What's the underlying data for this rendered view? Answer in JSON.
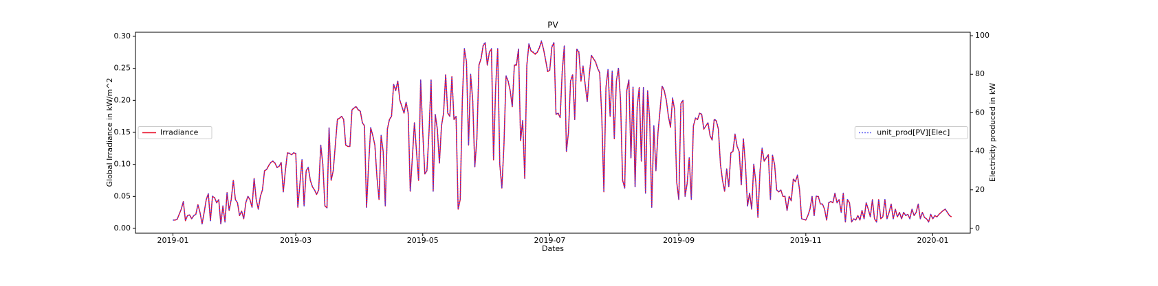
{
  "chart_data": {
    "type": "line",
    "title": "PV",
    "xlabel": "Dates",
    "ylabel": "Global Irradiance in kW/m^2",
    "y2label": "Electricity produced in kW",
    "xlim": [
      -18,
      383
    ],
    "xticks": [
      {
        "value": 0,
        "label": "2019-01"
      },
      {
        "value": 59,
        "label": "2019-03"
      },
      {
        "value": 120,
        "label": "2019-05"
      },
      {
        "value": 181,
        "label": "2019-07"
      },
      {
        "value": 243,
        "label": "2019-09"
      },
      {
        "value": 304,
        "label": "2019-11"
      },
      {
        "value": 365,
        "label": "2020-01"
      }
    ],
    "ylim": [
      -0.0075,
      0.3064
    ],
    "yticks": [
      {
        "value": 0,
        "label": "0.00"
      },
      0.05,
      {
        "value": 0.1,
        "label": "0.10"
      },
      0.15,
      {
        "value": 0.2,
        "label": "0.20"
      },
      0.25,
      {
        "value": 0.3,
        "label": "0.30"
      }
    ],
    "y2lim": [
      -2.5,
      101.8
    ],
    "y2ticks": [
      0,
      20,
      40,
      60,
      80,
      100
    ],
    "x": [
      0,
      1,
      2,
      3,
      4,
      5,
      6,
      7,
      8,
      9,
      10,
      11,
      12,
      13,
      14,
      15,
      16,
      17,
      18,
      19,
      20,
      21,
      22,
      23,
      24,
      25,
      26,
      27,
      28,
      29,
      30,
      31,
      32,
      33,
      34,
      35,
      36,
      37,
      38,
      39,
      40,
      41,
      42,
      43,
      44,
      45,
      46,
      47,
      48,
      49,
      50,
      51,
      52,
      53,
      54,
      55,
      56,
      57,
      58,
      59,
      60,
      61,
      62,
      63,
      64,
      65,
      66,
      67,
      68,
      69,
      70,
      71,
      72,
      73,
      74,
      75,
      76,
      77,
      78,
      79,
      80,
      81,
      82,
      83,
      84,
      85,
      86,
      87,
      88,
      89,
      90,
      91,
      92,
      93,
      94,
      95,
      96,
      97,
      98,
      99,
      100,
      101,
      102,
      103,
      104,
      105,
      106,
      107,
      108,
      109,
      110,
      111,
      112,
      113,
      114,
      115,
      116,
      117,
      118,
      119,
      120,
      121,
      122,
      123,
      124,
      125,
      126,
      127,
      128,
      129,
      130,
      131,
      132,
      133,
      134,
      135,
      136,
      137,
      138,
      139,
      140,
      141,
      142,
      143,
      144,
      145,
      146,
      147,
      148,
      149,
      150,
      151,
      152,
      153,
      154,
      155,
      156,
      157,
      158,
      159,
      160,
      161,
      162,
      163,
      164,
      165,
      166,
      167,
      168,
      169,
      170,
      171,
      172,
      173,
      174,
      175,
      176,
      177,
      178,
      179,
      180,
      181,
      182,
      183,
      184,
      185,
      186,
      187,
      188,
      189,
      190,
      191,
      192,
      193,
      194,
      195,
      196,
      197,
      198,
      199,
      200,
      201,
      202,
      203,
      204,
      205,
      206,
      207,
      208,
      209,
      210,
      211,
      212,
      213,
      214,
      215,
      216,
      217,
      218,
      219,
      220,
      221,
      222,
      223,
      224,
      225,
      226,
      227,
      228,
      229,
      230,
      231,
      232,
      233,
      234,
      235,
      236,
      237,
      238,
      239,
      240,
      241,
      242,
      243,
      244,
      245,
      246,
      247,
      248,
      249,
      250,
      251,
      252,
      253,
      254,
      255,
      256,
      257,
      258,
      259,
      260,
      261,
      262,
      263,
      264,
      265,
      266,
      267,
      268,
      269,
      270,
      271,
      272,
      273,
      274,
      275,
      276,
      277,
      278,
      279,
      280,
      281,
      282,
      283,
      284,
      285,
      286,
      287,
      288,
      289,
      290,
      291,
      292,
      293,
      294,
      295,
      296,
      297,
      298,
      299,
      300,
      301,
      302,
      303,
      304,
      305,
      306,
      307,
      308,
      309,
      310,
      311,
      312,
      313,
      314,
      315,
      316,
      317,
      318,
      319,
      320,
      321,
      322,
      323,
      324,
      325,
      326,
      327,
      328,
      329,
      330,
      331,
      332,
      333,
      334,
      335,
      336,
      337,
      338,
      339,
      340,
      341,
      342,
      343,
      344,
      345,
      346,
      347,
      348,
      349,
      350,
      351,
      352,
      353,
      354,
      355,
      356,
      357,
      358,
      359,
      360,
      361,
      362,
      363,
      364,
      365,
      366,
      367,
      368,
      369,
      370,
      371,
      372,
      373,
      374
    ],
    "series": [
      {
        "name": "Irradiance",
        "color": "#e8102a",
        "style": "solid",
        "legend_loc": "center left",
        "values": [
          0.013,
          0.013,
          0.014,
          0.022,
          0.03,
          0.042,
          0.012,
          0.02,
          0.021,
          0.015,
          0.02,
          0.022,
          0.037,
          0.025,
          0.007,
          0.025,
          0.045,
          0.054,
          0.012,
          0.05,
          0.048,
          0.04,
          0.045,
          0.007,
          0.035,
          0.01,
          0.056,
          0.028,
          0.045,
          0.075,
          0.045,
          0.04,
          0.02,
          0.027,
          0.015,
          0.04,
          0.05,
          0.045,
          0.033,
          0.078,
          0.045,
          0.03,
          0.05,
          0.06,
          0.09,
          0.092,
          0.098,
          0.103,
          0.105,
          0.102,
          0.095,
          0.097,
          0.103,
          0.057,
          0.09,
          0.118,
          0.117,
          0.115,
          0.118,
          0.117,
          0.033,
          0.07,
          0.107,
          0.035,
          0.09,
          0.095,
          0.075,
          0.065,
          0.06,
          0.053,
          0.06,
          0.13,
          0.1,
          0.035,
          0.032,
          0.157,
          0.075,
          0.09,
          0.13,
          0.17,
          0.172,
          0.175,
          0.17,
          0.13,
          0.128,
          0.128,
          0.185,
          0.188,
          0.19,
          0.185,
          0.183,
          0.165,
          0.16,
          0.033,
          0.1,
          0.157,
          0.145,
          0.13,
          0.08,
          0.045,
          0.145,
          0.12,
          0.035,
          0.155,
          0.17,
          0.175,
          0.225,
          0.215,
          0.23,
          0.2,
          0.19,
          0.18,
          0.197,
          0.18,
          0.058,
          0.11,
          0.165,
          0.12,
          0.075,
          0.232,
          0.15,
          0.085,
          0.09,
          0.15,
          0.232,
          0.058,
          0.178,
          0.155,
          0.102,
          0.16,
          0.18,
          0.24,
          0.18,
          0.175,
          0.237,
          0.17,
          0.175,
          0.03,
          0.045,
          0.2,
          0.28,
          0.26,
          0.13,
          0.24,
          0.2,
          0.096,
          0.14,
          0.255,
          0.265,
          0.285,
          0.29,
          0.255,
          0.275,
          0.28,
          0.107,
          0.22,
          0.28,
          0.1,
          0.063,
          0.13,
          0.238,
          0.23,
          0.215,
          0.19,
          0.255,
          0.255,
          0.28,
          0.137,
          0.168,
          0.078,
          0.255,
          0.288,
          0.277,
          0.275,
          0.272,
          0.275,
          0.282,
          0.292,
          0.28,
          0.263,
          0.245,
          0.247,
          0.283,
          0.29,
          0.178,
          0.18,
          0.173,
          0.245,
          0.285,
          0.12,
          0.15,
          0.23,
          0.24,
          0.17,
          0.28,
          0.275,
          0.23,
          0.253,
          0.225,
          0.198,
          0.24,
          0.27,
          0.265,
          0.26,
          0.25,
          0.243,
          0.175,
          0.057,
          0.22,
          0.248,
          0.175,
          0.245,
          0.14,
          0.23,
          0.25,
          0.2,
          0.075,
          0.063,
          0.215,
          0.232,
          0.11,
          0.22,
          0.065,
          0.19,
          0.22,
          0.105,
          0.22,
          0.055,
          0.215,
          0.17,
          0.033,
          0.16,
          0.09,
          0.15,
          0.185,
          0.222,
          0.215,
          0.2,
          0.175,
          0.158,
          0.203,
          0.185,
          0.072,
          0.045,
          0.195,
          0.2,
          0.05,
          0.07,
          0.11,
          0.045,
          0.16,
          0.172,
          0.17,
          0.18,
          0.178,
          0.155,
          0.16,
          0.165,
          0.145,
          0.138,
          0.17,
          0.168,
          0.155,
          0.1,
          0.075,
          0.058,
          0.093,
          0.065,
          0.118,
          0.12,
          0.147,
          0.128,
          0.12,
          0.068,
          0.14,
          0.1,
          0.035,
          0.055,
          0.03,
          0.1,
          0.072,
          0.017,
          0.09,
          0.125,
          0.105,
          0.11,
          0.115,
          0.045,
          0.114,
          0.1,
          0.06,
          0.057,
          0.06,
          0.05,
          0.05,
          0.028,
          0.05,
          0.043,
          0.077,
          0.073,
          0.083,
          0.06,
          0.015,
          0.014,
          0.013,
          0.02,
          0.03,
          0.05,
          0.02,
          0.05,
          0.05,
          0.038,
          0.038,
          0.03,
          0.013,
          0.04,
          0.042,
          0.04,
          0.055,
          0.04,
          0.045,
          0.025,
          0.055,
          0.01,
          0.045,
          0.04,
          0.01,
          0.015,
          0.013,
          0.02,
          0.013,
          0.028,
          0.015,
          0.04,
          0.03,
          0.018,
          0.045,
          0.015,
          0.01,
          0.045,
          0.015,
          0.018,
          0.045,
          0.015,
          0.025,
          0.038,
          0.015,
          0.03,
          0.018,
          0.025,
          0.015,
          0.025,
          0.02,
          0.022,
          0.015,
          0.03,
          0.02,
          0.025,
          0.038,
          0.015,
          0.025,
          0.017,
          0.015,
          0.01,
          0.022,
          0.015,
          0.02,
          0.018,
          0.022,
          0.025,
          0.028,
          0.03,
          0.025,
          0.02,
          0.018
        ]
      },
      {
        "name": "unit_prod[PV][Elec]",
        "color": "#3c3cf0",
        "style": "dotted",
        "axis": "y2",
        "legend_loc": "center right",
        "values": [
          4.3,
          4.3,
          4.7,
          7.3,
          10,
          14,
          4,
          6.7,
          7,
          5,
          6.7,
          7.3,
          12.3,
          8.3,
          2.3,
          8.3,
          15,
          18,
          4,
          16.7,
          16,
          13.3,
          15,
          2.3,
          11.7,
          3.3,
          18.7,
          9.3,
          15,
          25,
          15,
          13.3,
          6.7,
          9,
          5,
          13.3,
          16.7,
          15,
          11,
          26,
          15,
          10,
          16.7,
          20,
          30,
          30.7,
          32.7,
          34.3,
          35,
          34,
          31.7,
          32.3,
          34.3,
          19,
          30,
          39.3,
          39,
          38.3,
          39.3,
          39,
          11,
          23.3,
          35.7,
          11.7,
          30,
          31.7,
          25,
          21.7,
          20,
          17.7,
          20,
          43.3,
          33.3,
          11.7,
          10.7,
          52.3,
          25,
          30,
          43.3,
          56.7,
          57.3,
          58.3,
          56.7,
          43.3,
          42.7,
          42.7,
          61.7,
          62.7,
          63.3,
          61.7,
          61,
          55,
          53.3,
          11,
          33.3,
          52.3,
          48.3,
          43.3,
          26.7,
          15,
          48.3,
          40,
          11.7,
          51.7,
          56.7,
          58.3,
          75,
          71.7,
          76.7,
          66.7,
          63.3,
          60,
          65.7,
          60,
          19.3,
          36.7,
          55,
          40,
          25,
          77.3,
          50,
          28.3,
          30,
          50,
          77.3,
          19.3,
          59.3,
          51.7,
          34,
          53.3,
          60,
          80,
          60,
          58.3,
          79,
          56.7,
          58.3,
          10,
          15,
          66.7,
          93.3,
          86.7,
          43.3,
          80,
          66.7,
          32,
          46.7,
          85,
          88.3,
          95,
          96.7,
          85,
          91.7,
          93.3,
          35.7,
          73.3,
          93.3,
          33.3,
          21,
          43.3,
          79.3,
          76.7,
          71.7,
          63.3,
          85,
          85,
          93.3,
          45.7,
          56,
          26,
          85,
          96,
          92.3,
          91.7,
          90.7,
          91.7,
          94,
          97.3,
          93.3,
          87.7,
          81.7,
          82.3,
          94.3,
          96.7,
          59.3,
          60,
          57.7,
          81.7,
          95,
          40,
          50,
          76.7,
          80,
          56.7,
          93.3,
          91.7,
          76.7,
          84.3,
          75,
          66,
          80,
          90,
          88.3,
          86.7,
          83.3,
          81,
          58.3,
          19,
          73.3,
          82.7,
          58.3,
          81.7,
          46.7,
          76.7,
          83.3,
          66.7,
          25,
          21,
          71.7,
          77.3,
          36.7,
          73.3,
          21.7,
          63.3,
          73.3,
          35,
          73.3,
          18.3,
          71.7,
          56.7,
          11,
          53.3,
          30,
          50,
          61.7,
          74,
          71.7,
          66.7,
          58.3,
          52.7,
          67.7,
          61.7,
          24,
          15,
          65,
          66.7,
          16.7,
          23.3,
          36.7,
          15,
          53.3,
          57.3,
          56.7,
          60,
          59.3,
          51.7,
          53.3,
          55,
          48.3,
          46,
          56.7,
          56,
          51.7,
          33.3,
          25,
          19.3,
          31,
          21.7,
          39.3,
          40,
          49,
          42.7,
          40,
          22.7,
          46.7,
          33.3,
          11.7,
          18.3,
          10,
          33.3,
          24,
          5.7,
          30,
          41.7,
          35,
          36.7,
          38.3,
          15,
          38,
          33.3,
          20,
          19,
          20,
          16.7,
          16.7,
          9.3,
          16.7,
          14.3,
          25.7,
          24.3,
          27.7,
          20,
          5,
          4.7,
          4.3,
          6.7,
          10,
          16.7,
          6.7,
          16.7,
          16.7,
          12.7,
          12.7,
          10,
          4.3,
          13.3,
          14,
          13.3,
          18.3,
          13.3,
          15,
          8.3,
          18.3,
          3.3,
          15,
          13.3,
          3.3,
          5,
          4.3,
          6.7,
          4.3,
          9.3,
          5,
          13.3,
          10,
          6,
          15,
          5,
          3.3,
          15,
          5,
          6,
          15,
          5,
          8.3,
          12.7,
          5,
          10,
          6,
          8.3,
          5,
          8.3,
          6.7,
          7.3,
          5,
          10,
          6.7,
          8.3,
          12.7,
          5,
          8.3,
          5.7,
          5,
          3.3,
          7.3,
          5,
          6.7,
          6,
          7.3,
          8.3,
          9.3,
          10,
          8.3,
          6.7,
          6
        ]
      }
    ]
  }
}
